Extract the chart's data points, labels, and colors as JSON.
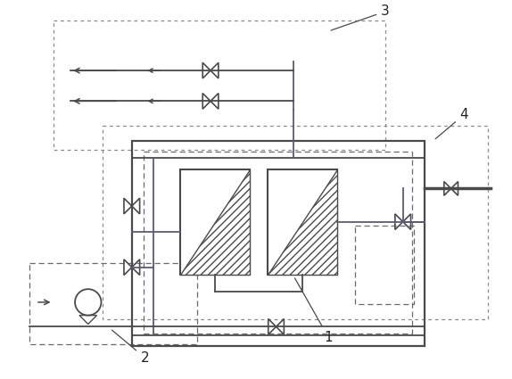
{
  "bg_color": "#ffffff",
  "line_color": "#4a4a4a",
  "pipe_color": "#5a5a7a",
  "dashed_color": "#6a6a6a",
  "dotted_color": "#8a8a8a",
  "hatch_color": "#555555",
  "label_color": "#222222",
  "fig_width": 5.74,
  "fig_height": 4.25,
  "dpi": 100
}
